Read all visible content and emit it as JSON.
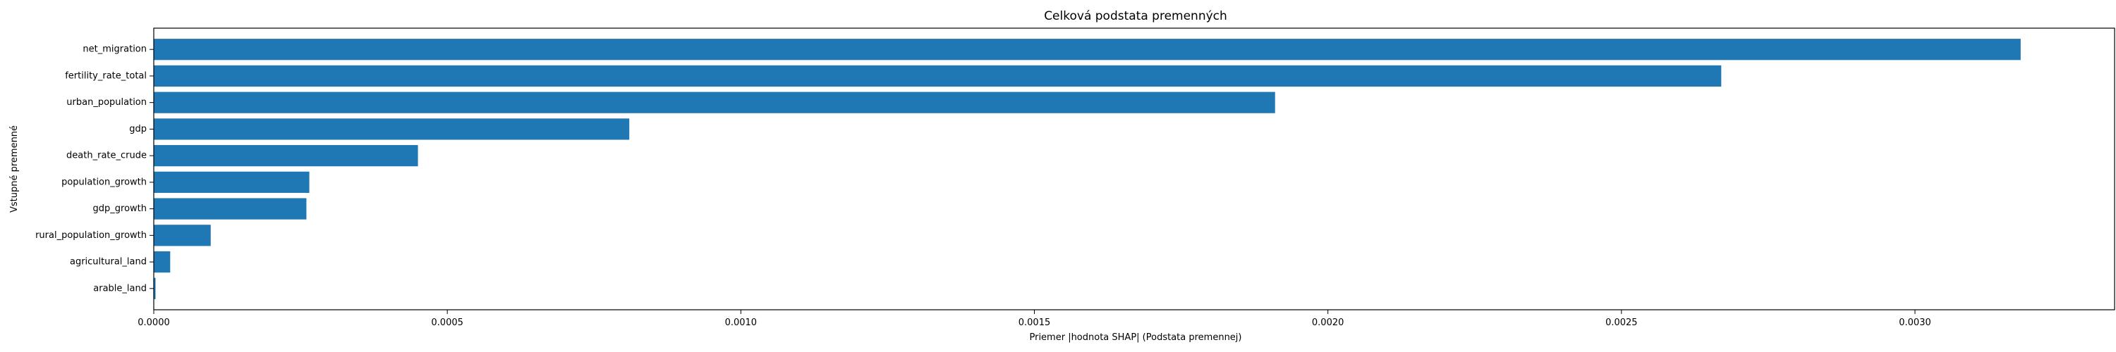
{
  "chart_data": {
    "type": "bar",
    "orientation": "horizontal",
    "title": "Celková podstata premenných",
    "xlabel": "Priemer |hodnota SHAP| (Podstata premennej)",
    "ylabel": "Vstupné premenné",
    "categories": [
      "net_migration",
      "fertility_rate_total",
      "urban_population",
      "gdp",
      "death_rate_crude",
      "population_growth",
      "gdp_growth",
      "rural_population_growth",
      "agricultural_land",
      "arable_land"
    ],
    "values": [
      0.00318,
      0.00267,
      0.00191,
      0.00081,
      0.00045,
      0.000265,
      0.00026,
      9.7e-05,
      2.8e-05,
      3e-06
    ],
    "xlim": [
      0,
      0.00334
    ],
    "xticks": [
      0.0,
      0.0005,
      0.001,
      0.0015,
      0.002,
      0.0025,
      0.003
    ],
    "xtick_labels": [
      "0.0000",
      "0.0005",
      "0.0010",
      "0.0015",
      "0.0020",
      "0.0025",
      "0.0030"
    ],
    "bar_color": "#1f77b4",
    "grid": false,
    "legend": "none"
  }
}
